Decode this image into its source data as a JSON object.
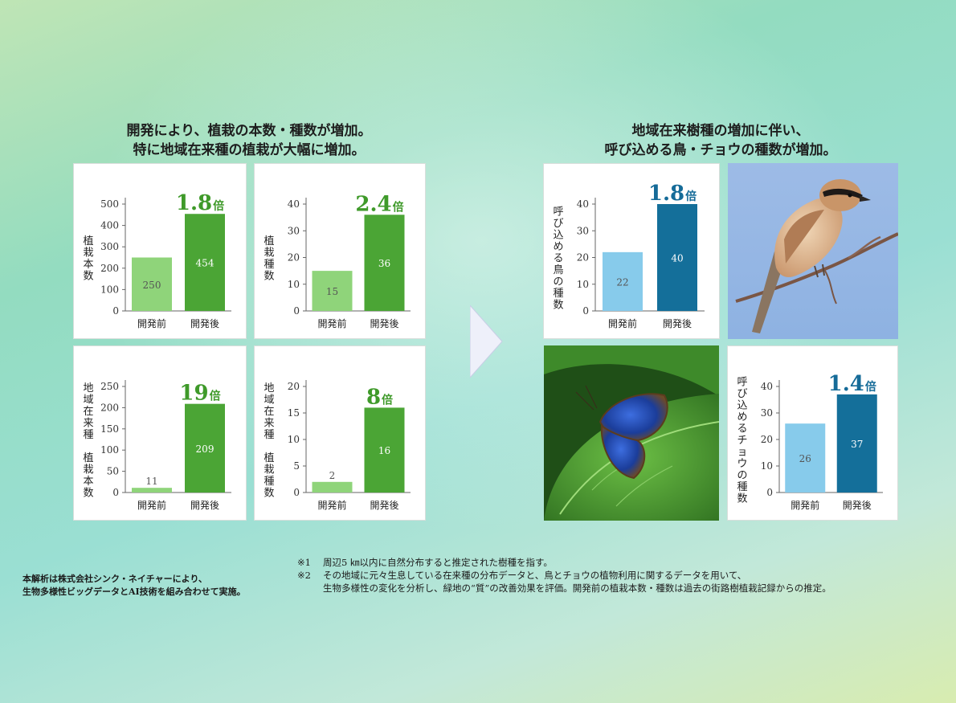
{
  "left_heading": {
    "line1": "開発により、植栽の本数・種数が増加。",
    "line2": "特に地域在来種の植栽が大幅に増加。"
  },
  "right_heading": {
    "line1": "地域在来樹種の増加に伴い、",
    "line2": "呼び込める鳥・チョウの種数が増加。"
  },
  "colors": {
    "green_before": "#8fd47a",
    "green_after": "#4ba535",
    "green_ratio": "#3f9a2a",
    "blue_before": "#87cbeb",
    "blue_after": "#146f9a",
    "blue_ratio": "#156b98"
  },
  "chart_data": [
    {
      "type": "bar",
      "ylabel": "植栽本数",
      "categories": [
        "開発前",
        "開発後"
      ],
      "values": [
        250,
        454
      ],
      "ylim": [
        0,
        500
      ],
      "yticks": [
        0,
        100,
        200,
        300,
        400,
        500
      ],
      "ratio": "1.8",
      "ratio_unit": "倍",
      "palette": "green"
    },
    {
      "type": "bar",
      "ylabel": "植栽種数",
      "categories": [
        "開発前",
        "開発後"
      ],
      "values": [
        15,
        36
      ],
      "ylim": [
        0,
        40
      ],
      "yticks": [
        0,
        10,
        20,
        30,
        40
      ],
      "ratio": "2.4",
      "ratio_unit": "倍",
      "palette": "green"
    },
    {
      "type": "bar",
      "ylabel": "地域在来種 植栽本数",
      "categories": [
        "開発前",
        "開発後"
      ],
      "values": [
        11,
        209
      ],
      "ylim": [
        0,
        250
      ],
      "yticks": [
        0,
        50,
        100,
        150,
        200,
        250
      ],
      "ratio": "19",
      "ratio_unit": "倍",
      "palette": "green"
    },
    {
      "type": "bar",
      "ylabel": "地域在来種 植栽種数",
      "categories": [
        "開発前",
        "開発後"
      ],
      "values": [
        2,
        16
      ],
      "ylim": [
        0,
        20
      ],
      "yticks": [
        0,
        5,
        10,
        15,
        20
      ],
      "ratio": "8",
      "ratio_unit": "倍",
      "palette": "green"
    },
    {
      "type": "bar",
      "ylabel": "呼び込める鳥の種数",
      "categories": [
        "開発前",
        "開発後"
      ],
      "values": [
        22,
        40
      ],
      "ylim": [
        0,
        40
      ],
      "yticks": [
        0,
        10,
        20,
        30,
        40
      ],
      "ratio": "1.8",
      "ratio_unit": "倍",
      "palette": "blue"
    },
    {
      "type": "bar",
      "ylabel": "呼び込めるチョウの種数",
      "categories": [
        "開発前",
        "開発後"
      ],
      "values": [
        26,
        37
      ],
      "ylim": [
        0,
        40
      ],
      "yticks": [
        0,
        10,
        20,
        30,
        40
      ],
      "ratio": "1.4",
      "ratio_unit": "倍",
      "palette": "blue"
    }
  ],
  "notes": {
    "note1_mark": "※1",
    "note1_text": "周辺5 ㎞以内に自然分布すると推定された樹種を指す。",
    "note2_mark": "※2",
    "note2_line1": "その地域に元々生息している在来種の分布データと、鳥とチョウの植物利用に関するデータを用いて、",
    "note2_line2": "生物多様性の変化を分析し、緑地の“質”の改善効果を評価。開発前の植栽本数・種数は過去の街路樹植栽記録からの推定。"
  },
  "credit": {
    "line1": "本解析は株式会社シンク・ネイチャーにより、",
    "line2": "生物多様性ビッグデータとAI技術を組み合わせて実施。"
  }
}
